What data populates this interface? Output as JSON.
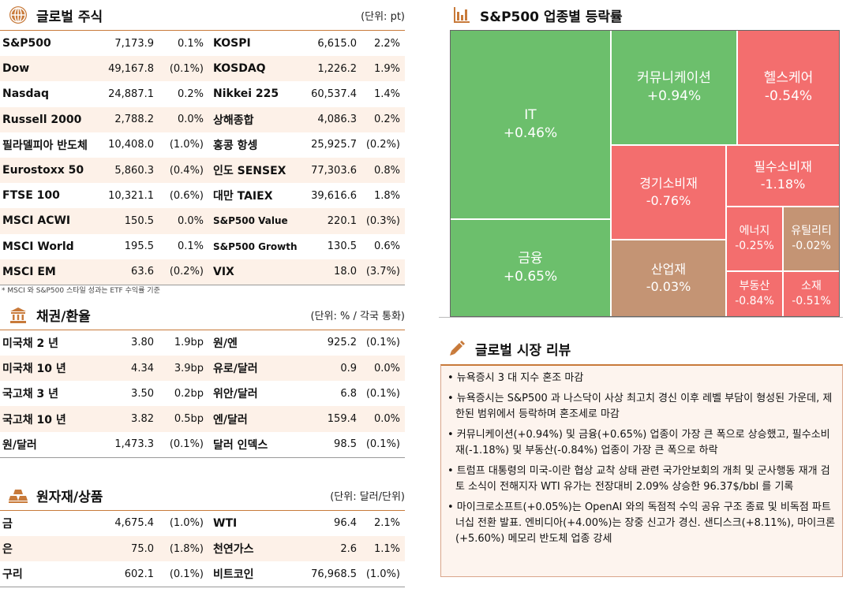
{
  "global_stocks": {
    "title": "글로벌 주식",
    "unit": "(단위: pt)",
    "rows": [
      {
        "n1": "S&P500",
        "v1": "7,173.9",
        "c1": "0.1%",
        "n2": "KOSPI",
        "v2": "6,615.0",
        "c2": "2.2%"
      },
      {
        "n1": "Dow",
        "v1": "49,167.8",
        "c1": "(0.1%)",
        "n2": "KOSDAQ",
        "v2": "1,226.2",
        "c2": "1.9%"
      },
      {
        "n1": "Nasdaq",
        "v1": "24,887.1",
        "c1": "0.2%",
        "n2": "Nikkei 225",
        "v2": "60,537.4",
        "c2": "1.4%"
      },
      {
        "n1": "Russell 2000",
        "v1": "2,788.2",
        "c1": "0.0%",
        "n2": "상해종합",
        "v2": "4,086.3",
        "c2": "0.2%"
      },
      {
        "n1": "필라델피아 반도체",
        "v1": "10,408.0",
        "c1": "(1.0%)",
        "n2": "홍콩 항셍",
        "v2": "25,925.7",
        "c2": "(0.2%)"
      },
      {
        "n1": "Eurostoxx 50",
        "v1": "5,860.3",
        "c1": "(0.4%)",
        "n2": "인도 SENSEX",
        "v2": "77,303.6",
        "c2": "0.8%"
      },
      {
        "n1": "FTSE 100",
        "v1": "10,321.1",
        "c1": "(0.6%)",
        "n2": "대만 TAIEX",
        "v2": "39,616.6",
        "c2": "1.8%"
      },
      {
        "n1": "MSCI ACWI",
        "v1": "150.5",
        "c1": "0.0%",
        "n2": "S&P500 Value",
        "v2": "220.1",
        "c2": "(0.3%)"
      },
      {
        "n1": "MSCI World",
        "v1": "195.5",
        "c1": "0.1%",
        "n2": "S&P500 Growth",
        "v2": "130.5",
        "c2": "0.6%"
      },
      {
        "n1": "MSCI EM",
        "v1": "63.6",
        "c1": "(0.2%)",
        "n2": "VIX",
        "v2": "18.0",
        "c2": "(3.7%)"
      }
    ],
    "note": "* MSCI 와 S&P500 스타일 성과는 ETF 수익률 기준"
  },
  "bonds_fx": {
    "title": "채권/환율",
    "unit": "(단위: % / 각국 통화)",
    "rows": [
      {
        "n1": "미국채 2 년",
        "v1": "3.80",
        "c1": "1.9bp",
        "n2": "원/엔",
        "v2": "925.2",
        "c2": "(0.1%)"
      },
      {
        "n1": "미국채 10 년",
        "v1": "4.34",
        "c1": "3.9bp",
        "n2": "유로/달러",
        "v2": "0.9",
        "c2": "0.0%"
      },
      {
        "n1": "국고채 3 년",
        "v1": "3.50",
        "c1": "0.2bp",
        "n2": "위안/달러",
        "v2": "6.8",
        "c2": "(0.1%)"
      },
      {
        "n1": "국고채 10 년",
        "v1": "3.82",
        "c1": "0.5bp",
        "n2": "엔/달러",
        "v2": "159.4",
        "c2": "0.0%"
      },
      {
        "n1": "원/달러",
        "v1": "1,473.3",
        "c1": "(0.1%)",
        "n2": "달러 인덱스",
        "v2": "98.5",
        "c2": "(0.1%)"
      }
    ]
  },
  "commodities": {
    "title": "원자재/상품",
    "unit": "(단위: 달러/단위)",
    "rows": [
      {
        "n1": "금",
        "v1": "4,675.4",
        "c1": "(1.0%)",
        "n2": "WTI",
        "v2": "96.4",
        "c2": "2.1%"
      },
      {
        "n1": "은",
        "v1": "75.0",
        "c1": "(1.8%)",
        "n2": "천연가스",
        "v2": "2.6",
        "c2": "1.1%"
      },
      {
        "n1": "구리",
        "v1": "602.1",
        "c1": "(0.1%)",
        "n2": "비트코인",
        "v2": "76,968.5",
        "c2": "(1.0%)"
      }
    ]
  },
  "sector": {
    "title": "S&P500 업종별 등락률",
    "tiles": [
      {
        "name": "IT",
        "value": "+0.46%",
        "color": "green"
      },
      {
        "name": "금융",
        "value": "+0.65%",
        "color": "green"
      },
      {
        "name": "커뮤니케이션",
        "value": "+0.94%",
        "color": "green"
      },
      {
        "name": "헬스케어",
        "value": "-0.54%",
        "color": "red"
      },
      {
        "name": "경기소비재",
        "value": "-0.76%",
        "color": "red"
      },
      {
        "name": "필수소비재",
        "value": "-1.18%",
        "color": "red"
      },
      {
        "name": "산업재",
        "value": "-0.03%",
        "color": "brown"
      },
      {
        "name": "에너지",
        "value": "-0.25%",
        "color": "red"
      },
      {
        "name": "유틸리티",
        "value": "-0.02%",
        "color": "brown"
      },
      {
        "name": "부동산",
        "value": "-0.84%",
        "color": "red"
      },
      {
        "name": "소재",
        "value": "-0.51%",
        "color": "red"
      }
    ]
  },
  "review": {
    "title": "글로벌 시장 리뷰",
    "bullets": [
      "• 뉴욕증시 3 대 지수 혼조 마감",
      "• 뉴욕증시는 S&P500 과 나스닥이 사상 최고치 경신 이후 레벨 부담이 형성된 가운데, 제한된 범위에서 등락하며 혼조세로 마감",
      "• 커뮤니케이션(+0.94%) 및 금융(+0.65%) 업종이 가장 큰 폭으로 상승했고, 필수소비재(-1.18%) 및 부동산(-0.84%) 업종이 가장 큰 폭으로 하락",
      "• 트럼프 대통령의 미국-이란 협상 교착 상태 관련 국가안보회의 개최 및 군사행동 재개 검토 소식이 전해지자 WTI 유가는 전장대비 2.09% 상승한 96.37$/bbl 를 기록",
      "• 마이크로소프트(+0.05%)는 OpenAI 와의 독점적 수익 공유 구조 종료 및 비독점 파트너십 전환 발표. 엔비디아(+4.00%)는 장중 신고가 경신. 샌디스크(+8.11%), 마이크론(+5.60%) 메모리 반도체 업종 강세"
    ]
  },
  "colors": {
    "accent": "#c87a3a",
    "green": "#6cbf6c",
    "red": "#f36e6e",
    "brown": "#c49474",
    "row_alt": "#fdf1e8"
  }
}
